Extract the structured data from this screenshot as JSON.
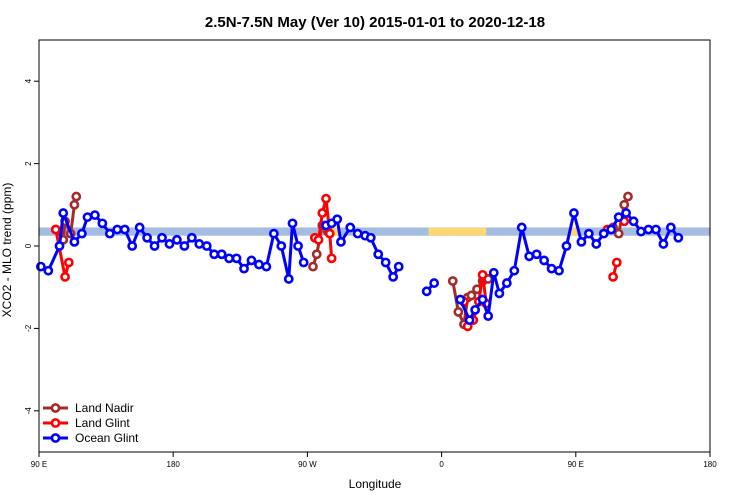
{
  "chart_data": {
    "type": "line",
    "title": "2.5N-7.5N May (Ver 10)   2015-01-01 to 2020-12-18",
    "xlabel": "Longitude",
    "ylabel": "XCO2 - MLO trend (ppm)",
    "xlim": [
      90,
      450
    ],
    "ylim": [
      -5,
      5
    ],
    "x_ticks": [
      {
        "value": 90,
        "label": "90 E"
      },
      {
        "value": 162,
        "label": "180"
      },
      {
        "value": 234,
        "label": "90 W"
      },
      {
        "value": 306,
        "label": "0"
      },
      {
        "value": 378,
        "label": "90 E"
      },
      {
        "value": 450,
        "label": "180"
      }
    ],
    "y_ticks": [
      -4,
      -2,
      0,
      2,
      4
    ],
    "grid": false,
    "legend_position": "bottom-left",
    "band": {
      "y_range": [
        0.25,
        0.45
      ],
      "color": "#a3bce0",
      "land_color": "#fdd675",
      "land_segments": [
        [
          244,
          251
        ],
        [
          299,
          311
        ],
        [
          311,
          330
        ],
        [
          375,
          379
        ]
      ]
    },
    "series": [
      {
        "name": "Land Nadir",
        "color": "#a52a2a",
        "segments": [
          [
            [
              99,
              0.4
            ],
            [
              103,
              0.15
            ],
            [
              104,
              0.6
            ],
            [
              107,
              0.3
            ],
            [
              109,
              1.0
            ],
            [
              110,
              1.2
            ]
          ],
          [
            [
              237,
              -0.5
            ],
            [
              239,
              -0.2
            ],
            [
              242,
              0.5
            ],
            [
              245,
              0.35
            ]
          ],
          [
            [
              312,
              -0.85
            ],
            [
              315,
              -1.6
            ],
            [
              318,
              -1.9
            ],
            [
              320,
              -1.25
            ],
            [
              322,
              -1.2
            ],
            [
              325,
              -1.05
            ],
            [
              328,
              -0.85
            ],
            [
              331,
              -0.8
            ]
          ],
          [
            [
              398,
              0.45
            ],
            [
              401,
              0.3
            ],
            [
              404,
              1.0
            ],
            [
              406,
              1.2
            ]
          ]
        ]
      },
      {
        "name": "Land Glint",
        "color": "#ff0000",
        "segments": [
          [
            [
              99,
              0.4
            ],
            [
              104,
              -0.75
            ],
            [
              106,
              -0.4
            ]
          ],
          [
            [
              238,
              0.2
            ],
            [
              240,
              0.15
            ],
            [
              242,
              0.8
            ],
            [
              244,
              1.15
            ],
            [
              246,
              0.3
            ],
            [
              247,
              -0.3
            ]
          ],
          [
            [
              318,
              -1.35
            ],
            [
              320,
              -1.95
            ],
            [
              323,
              -1.8
            ],
            [
              326,
              -1.35
            ],
            [
              328,
              -0.7
            ],
            [
              330,
              -1.4
            ]
          ],
          [
            [
              395,
              0.4
            ]
          ],
          [
            [
              398,
              -0.75
            ],
            [
              400,
              -0.4
            ]
          ],
          [
            [
              404,
              0.6
            ]
          ]
        ]
      },
      {
        "name": "Ocean Glint",
        "color": "#0000ff",
        "segments": [
          [
            [
              91,
              -0.5
            ],
            [
              95,
              -0.6
            ],
            [
              101,
              0.0
            ],
            [
              103,
              0.8
            ],
            [
              109,
              0.1
            ],
            [
              113,
              0.3
            ],
            [
              116,
              0.7
            ],
            [
              120,
              0.75
            ],
            [
              124,
              0.55
            ],
            [
              128,
              0.3
            ],
            [
              132,
              0.4
            ],
            [
              136,
              0.4
            ],
            [
              140,
              0.0
            ],
            [
              144,
              0.45
            ],
            [
              148,
              0.2
            ],
            [
              152,
              0.0
            ],
            [
              156,
              0.2
            ],
            [
              160,
              0.05
            ],
            [
              164,
              0.15
            ],
            [
              168,
              0.0
            ],
            [
              172,
              0.2
            ],
            [
              176,
              0.05
            ],
            [
              180,
              0.0
            ],
            [
              184,
              -0.2
            ],
            [
              188,
              -0.2
            ],
            [
              192,
              -0.3
            ],
            [
              196,
              -0.3
            ],
            [
              200,
              -0.55
            ],
            [
              204,
              -0.35
            ],
            [
              208,
              -0.45
            ],
            [
              212,
              -0.5
            ],
            [
              216,
              0.3
            ],
            [
              220,
              0.0
            ],
            [
              224,
              -0.8
            ],
            [
              226,
              0.55
            ],
            [
              229,
              0.0
            ],
            [
              232,
              -0.4
            ]
          ],
          [
            [
              244,
              0.5
            ],
            [
              247,
              0.55
            ],
            [
              250,
              0.65
            ],
            [
              252,
              0.1
            ],
            [
              257,
              0.45
            ],
            [
              261,
              0.3
            ],
            [
              265,
              0.25
            ],
            [
              268,
              0.2
            ],
            [
              272,
              -0.2
            ],
            [
              276,
              -0.4
            ],
            [
              280,
              -0.75
            ],
            [
              283,
              -0.5
            ]
          ],
          [
            [
              298,
              -1.1
            ],
            [
              302,
              -0.9
            ]
          ],
          [
            [
              316,
              -1.3
            ],
            [
              321,
              -1.8
            ],
            [
              324,
              -1.55
            ],
            [
              328,
              -1.3
            ],
            [
              331,
              -1.7
            ],
            [
              334,
              -0.65
            ],
            [
              337,
              -1.15
            ],
            [
              341,
              -0.9
            ],
            [
              345,
              -0.6
            ],
            [
              349,
              0.45
            ],
            [
              353,
              -0.25
            ],
            [
              357,
              -0.2
            ],
            [
              361,
              -0.35
            ],
            [
              365,
              -0.55
            ],
            [
              369,
              -0.6
            ],
            [
              373,
              0.0
            ],
            [
              377,
              0.8
            ],
            [
              381,
              0.1
            ],
            [
              385,
              0.3
            ],
            [
              389,
              0.05
            ],
            [
              393,
              0.3
            ],
            [
              397,
              0.4
            ],
            [
              401,
              0.7
            ],
            [
              405,
              0.8
            ],
            [
              409,
              0.6
            ],
            [
              413,
              0.35
            ],
            [
              417,
              0.4
            ],
            [
              421,
              0.4
            ],
            [
              425,
              0.05
            ],
            [
              429,
              0.45
            ],
            [
              433,
              0.2
            ]
          ]
        ]
      }
    ]
  }
}
